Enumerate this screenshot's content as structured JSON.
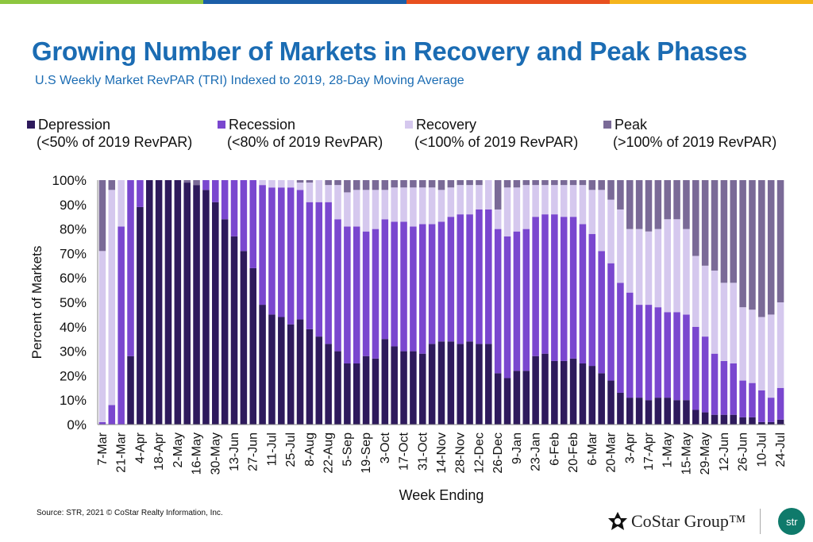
{
  "brand_colors": [
    "#8dc63f",
    "#1b5ea8",
    "#e8501f",
    "#f5b51d"
  ],
  "title": "Growing Number of Markets in Recovery and Peak Phases",
  "subtitle": "U.S Weekly Market RevPAR (TRI) Indexed to 2019, 28-Day Moving Average",
  "legend": [
    {
      "name": "Depression",
      "desc": "(<50% of 2019 RevPAR)",
      "color": "#2e1a5c"
    },
    {
      "name": "Recession",
      "desc": "(<80% of 2019 RevPAR)",
      "color": "#7a47cf"
    },
    {
      "name": "Recovery",
      "desc": "(<100% of 2019 RevPAR)",
      "color": "#d5c8ee"
    },
    {
      "name": "Peak",
      "desc": "(>100% of 2019 RevPAR)",
      "color": "#7a6a97"
    }
  ],
  "source": "Source: STR, 2021 © CoStar Realty Information, Inc.",
  "logo": {
    "brand": "CoStar Group™",
    "str": "str"
  },
  "chart_data": {
    "type": "bar",
    "stacked": true,
    "xlabel": "Week Ending",
    "ylabel": "Percent of Markets",
    "ylim": [
      0,
      100
    ],
    "yticks": [
      "0%",
      "10%",
      "20%",
      "30%",
      "40%",
      "50%",
      "60%",
      "70%",
      "80%",
      "90%",
      "100%"
    ],
    "grid": false,
    "legend_position": "top",
    "tick_labels": [
      "7-Mar",
      "21-Mar",
      "4-Apr",
      "18-Apr",
      "2-May",
      "16-May",
      "30-May",
      "13-Jun",
      "27-Jun",
      "11-Jul",
      "25-Jul",
      "8-Aug",
      "22-Aug",
      "5-Sep",
      "19-Sep",
      "3-Oct",
      "17-Oct",
      "31-Oct",
      "14-Nov",
      "28-Nov",
      "12-Dec",
      "26-Dec",
      "9-Jan",
      "23-Jan",
      "6-Feb",
      "20-Feb",
      "6-Mar",
      "20-Mar",
      "3-Apr",
      "17-Apr",
      "1-May",
      "15-May",
      "29-May",
      "12-Jun",
      "26-Jun",
      "10-Jul",
      "24-Jul"
    ],
    "series": [
      {
        "name": "Depression",
        "values": [
          0,
          0,
          0,
          28,
          89,
          100,
          100,
          100,
          100,
          99,
          98,
          96,
          91,
          84,
          77,
          71,
          64,
          49,
          45,
          44,
          41,
          43,
          39,
          36,
          33,
          30,
          25,
          25,
          28,
          27,
          35,
          32,
          30,
          30,
          29,
          33,
          34,
          34,
          33,
          34,
          33,
          33,
          21,
          19,
          22,
          22,
          28,
          29,
          26,
          26,
          27,
          25,
          24,
          21,
          18,
          13,
          11,
          11,
          10,
          11,
          11,
          10,
          10,
          6,
          5,
          4,
          4,
          4,
          3,
          3,
          1,
          1,
          2
        ]
      },
      {
        "name": "Recession",
        "values": [
          1,
          8,
          81,
          72,
          11,
          0,
          0,
          0,
          0,
          0,
          0,
          4,
          9,
          16,
          23,
          29,
          36,
          49,
          52,
          53,
          56,
          53,
          52,
          55,
          58,
          54,
          56,
          56,
          51,
          53,
          49,
          51,
          53,
          51,
          53,
          49,
          49,
          51,
          53,
          52,
          55,
          55,
          59,
          58,
          57,
          58,
          57,
          57,
          60,
          59,
          58,
          57,
          54,
          50,
          48,
          45,
          43,
          38,
          39,
          37,
          35,
          36,
          35,
          34,
          31,
          25,
          22,
          21,
          15,
          14,
          13,
          10,
          13
        ]
      },
      {
        "name": "Recovery",
        "values": [
          70,
          88,
          19,
          0,
          0,
          0,
          0,
          0,
          0,
          0,
          0,
          0,
          0,
          0,
          0,
          0,
          0,
          2,
          3,
          3,
          3,
          3,
          8,
          9,
          7,
          14,
          14,
          15,
          17,
          16,
          12,
          14,
          14,
          16,
          15,
          15,
          13,
          12,
          12,
          12,
          10,
          12,
          8,
          20,
          18,
          18,
          13,
          12,
          12,
          13,
          13,
          16,
          18,
          25,
          26,
          30,
          26,
          31,
          30,
          32,
          38,
          38,
          35,
          29,
          29,
          34,
          32,
          33,
          30,
          30,
          30,
          34,
          35
        ]
      },
      {
        "name": "Peak",
        "values": [
          29,
          4,
          0,
          0,
          0,
          0,
          0,
          0,
          0,
          1,
          2,
          0,
          0,
          0,
          0,
          0,
          0,
          0,
          0,
          0,
          0,
          1,
          1,
          0,
          2,
          2,
          5,
          4,
          4,
          4,
          4,
          3,
          3,
          3,
          3,
          3,
          4,
          3,
          2,
          2,
          2,
          0,
          12,
          3,
          3,
          2,
          2,
          2,
          2,
          2,
          2,
          2,
          4,
          4,
          8,
          12,
          20,
          20,
          21,
          20,
          16,
          16,
          20,
          31,
          35,
          37,
          42,
          42,
          52,
          53,
          56,
          55,
          50
        ]
      }
    ]
  }
}
